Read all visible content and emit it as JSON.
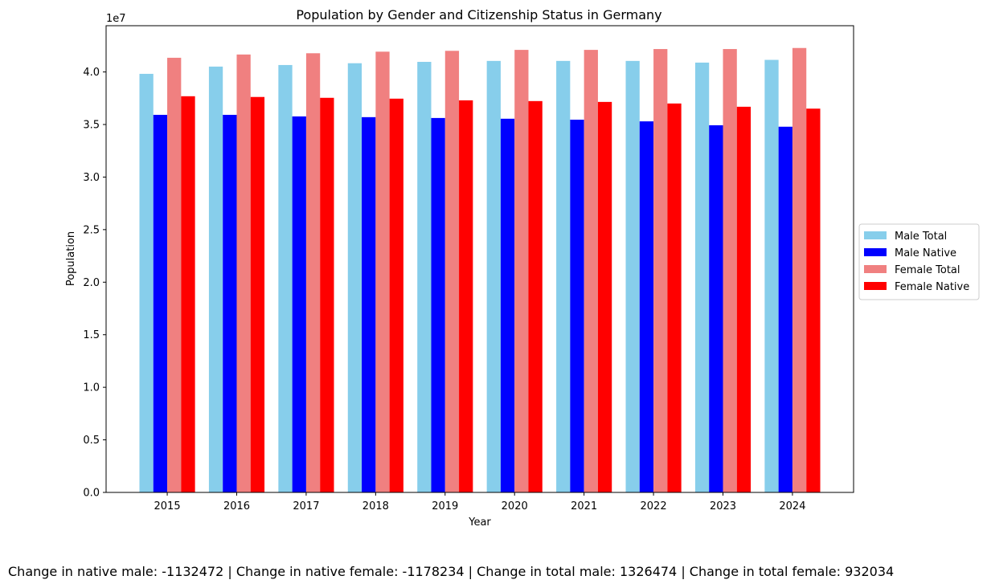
{
  "chart_data": {
    "type": "bar",
    "title": "Population by Gender and Citizenship Status in Germany",
    "xlabel": "Year",
    "ylabel": "Population",
    "y_offset_label": "1e7",
    "ylim": [
      0,
      44400000
    ],
    "yticks": [
      0,
      5000000,
      10000000,
      15000000,
      20000000,
      25000000,
      30000000,
      35000000,
      40000000
    ],
    "ytick_labels": [
      "0.0",
      "0.5",
      "1.0",
      "1.5",
      "2.0",
      "2.5",
      "3.0",
      "3.5",
      "4.0"
    ],
    "categories": [
      "2015",
      "2016",
      "2017",
      "2018",
      "2019",
      "2020",
      "2021",
      "2022",
      "2023",
      "2024"
    ],
    "series": [
      {
        "name": "Male Total",
        "color": "#87CEEB",
        "values": [
          39820000,
          40510000,
          40660000,
          40830000,
          40960000,
          41050000,
          41050000,
          41050000,
          40890000,
          41150000
        ]
      },
      {
        "name": "Male Native",
        "color": "#0000FF",
        "values": [
          35920000,
          35920000,
          35770000,
          35700000,
          35620000,
          35550000,
          35460000,
          35300000,
          34930000,
          34790000
        ]
      },
      {
        "name": "Female Total",
        "color": "#F08080",
        "values": [
          41350000,
          41660000,
          41780000,
          41930000,
          42010000,
          42100000,
          42100000,
          42180000,
          42180000,
          42280000
        ]
      },
      {
        "name": "Female Native",
        "color": "#FF0000",
        "values": [
          37690000,
          37620000,
          37540000,
          37460000,
          37300000,
          37230000,
          37150000,
          37000000,
          36690000,
          36510000
        ]
      }
    ],
    "grid": false,
    "legend_placement": "center-right outside"
  },
  "footer": {
    "text": "Change in native male: -1132472 | Change in native female: -1178234 | Change in total male: 1326474 | Change in total female: 932034"
  }
}
